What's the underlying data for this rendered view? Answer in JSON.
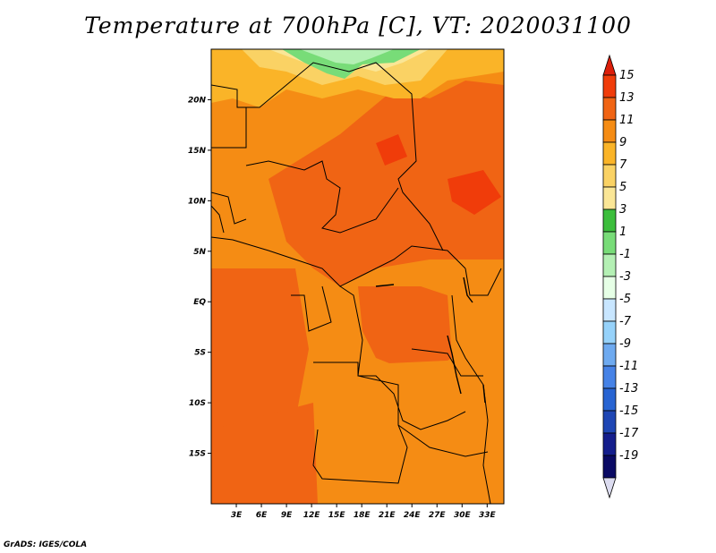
{
  "title": "Temperature at 700hPa [C], VT: 2020031100",
  "credit": "GrADS: IGES/COLA",
  "map": {
    "lon_range": [
      0,
      35
    ],
    "lat_range": [
      -20,
      25
    ],
    "lon_ticks": [
      "3E",
      "6E",
      "9E",
      "12E",
      "15E",
      "18E",
      "21E",
      "24E",
      "27E",
      "30E",
      "33E"
    ],
    "lat_ticks": [
      "20N",
      "15N",
      "10N",
      "5N",
      "EQ",
      "5S",
      "10S",
      "15S"
    ]
  },
  "colorbar": {
    "labels": [
      "15",
      "13",
      "11",
      "9",
      "7",
      "5",
      "3",
      "1",
      "-1",
      "-3",
      "-5",
      "-7",
      "-9",
      "-11",
      "-13",
      "-15",
      "-17",
      "-19"
    ],
    "colors": [
      "#dc1e0a",
      "#f03c0a",
      "#f06414",
      "#f58c14",
      "#fab428",
      "#fad264",
      "#fae696",
      "#3cbe3c",
      "#78dc78",
      "#b4f0b4",
      "#e6ffe6",
      "#c8e6ff",
      "#96d2fa",
      "#6eaaf0",
      "#4682e6",
      "#2864d2",
      "#1e46b4",
      "#141e8c",
      "#0a0a64",
      "#dcdcf0"
    ]
  }
}
